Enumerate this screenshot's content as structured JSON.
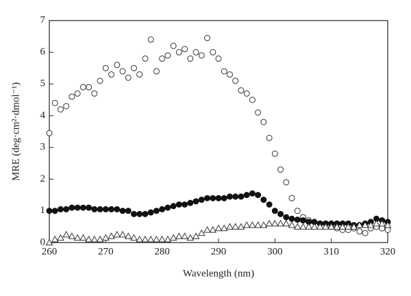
{
  "chart_data": {
    "type": "scatter",
    "x_label": "Wavelength (nm)",
    "y_label": "MRE (deg·cm²·dmol⁻¹)",
    "x": [
      260,
      261,
      262,
      263,
      264,
      265,
      266,
      267,
      268,
      269,
      270,
      271,
      272,
      273,
      274,
      275,
      276,
      277,
      278,
      279,
      280,
      281,
      282,
      283,
      284,
      285,
      286,
      287,
      288,
      289,
      290,
      291,
      292,
      293,
      294,
      295,
      296,
      297,
      298,
      299,
      300,
      301,
      302,
      303,
      304,
      305,
      306,
      307,
      308,
      309,
      310,
      311,
      312,
      313,
      314,
      315,
      316,
      317,
      318,
      319,
      320
    ],
    "series": [
      {
        "marker": "circle-open",
        "color": "#333333",
        "values": [
          3.45,
          4.4,
          4.2,
          4.3,
          4.6,
          4.7,
          4.9,
          4.9,
          4.7,
          5.1,
          5.5,
          5.3,
          5.6,
          5.4,
          5.2,
          5.5,
          5.3,
          5.8,
          6.4,
          5.4,
          5.8,
          5.9,
          6.2,
          6.0,
          6.1,
          5.8,
          6.0,
          5.9,
          6.45,
          6.0,
          5.8,
          5.4,
          5.3,
          5.1,
          4.8,
          4.7,
          4.5,
          4.1,
          3.8,
          3.3,
          2.8,
          2.3,
          1.9,
          1.4,
          1.0,
          0.8,
          0.7,
          0.65,
          0.6,
          0.6,
          0.5,
          0.45,
          0.4,
          0.4,
          0.45,
          0.35,
          0.3,
          0.45,
          0.5,
          0.45,
          0.4
        ]
      },
      {
        "marker": "circle-filled",
        "color": "#111111",
        "values": [
          1.0,
          1.0,
          1.05,
          1.05,
          1.1,
          1.1,
          1.1,
          1.1,
          1.05,
          1.05,
          1.05,
          1.05,
          1.05,
          1.0,
          1.0,
          0.9,
          0.9,
          0.9,
          0.95,
          1.0,
          1.05,
          1.1,
          1.15,
          1.2,
          1.2,
          1.25,
          1.3,
          1.35,
          1.4,
          1.4,
          1.4,
          1.4,
          1.45,
          1.45,
          1.45,
          1.5,
          1.55,
          1.5,
          1.35,
          1.2,
          1.0,
          0.9,
          0.8,
          0.75,
          0.72,
          0.7,
          0.65,
          0.65,
          0.6,
          0.6,
          0.6,
          0.6,
          0.6,
          0.6,
          0.55,
          0.55,
          0.6,
          0.65,
          0.75,
          0.7,
          0.65
        ]
      },
      {
        "marker": "triangle-open",
        "color": "#333333",
        "values": [
          0.0,
          0.1,
          0.15,
          0.25,
          0.2,
          0.15,
          0.15,
          0.1,
          0.1,
          0.1,
          0.15,
          0.2,
          0.25,
          0.25,
          0.2,
          0.15,
          0.1,
          0.1,
          0.1,
          0.1,
          0.1,
          0.1,
          0.15,
          0.2,
          0.2,
          0.15,
          0.2,
          0.3,
          0.4,
          0.4,
          0.45,
          0.45,
          0.5,
          0.5,
          0.5,
          0.55,
          0.55,
          0.55,
          0.55,
          0.6,
          0.6,
          0.6,
          0.6,
          0.55,
          0.5,
          0.5,
          0.5,
          0.5,
          0.5,
          0.5,
          0.5,
          0.5,
          0.5,
          0.5,
          0.5,
          0.55,
          0.55,
          0.55,
          0.6,
          0.6,
          0.55
        ]
      }
    ],
    "xlim": [
      260,
      320
    ],
    "xticks": [
      260,
      270,
      280,
      290,
      300,
      310,
      320
    ],
    "ylim": [
      0,
      7
    ],
    "yticks": [
      0,
      1,
      2,
      3,
      4,
      5,
      6,
      7
    ]
  }
}
